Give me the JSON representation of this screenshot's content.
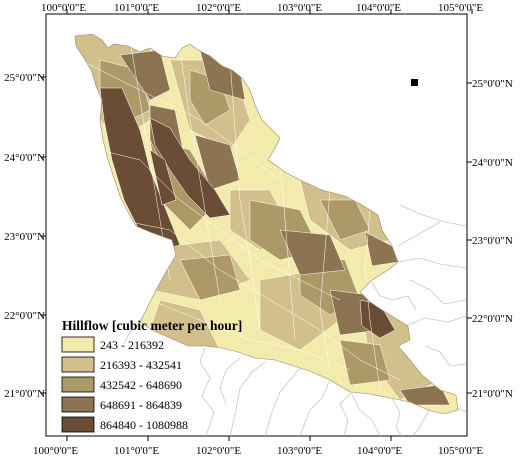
{
  "map": {
    "top_lon_labels": [
      "100°0'0\"E",
      "101°0'0\"E",
      "102°0'0\"E",
      "103°0'0\"E",
      "104°0'0\"E",
      "105°0'0\"E"
    ],
    "bottom_lon_labels": [
      "100°0'0\"E",
      "101°0'0\"E",
      "102°0'0\"E",
      "103°0'0\"E",
      "104°0'0\"E",
      "105°0'0\"E"
    ],
    "left_lat_labels": [
      "25°0'0\"N",
      "24°0'0\"N",
      "23°0'0\"N",
      "22°0'0\"N",
      "21°0'0\"N"
    ],
    "right_lat_labels": [
      "25°0'0\"N",
      "24°0'0\"N",
      "23°0'0\"N",
      "22°0'0\"N",
      "21°0'0\"N"
    ]
  },
  "legend": {
    "title": "Hillflow [cubic meter per hour]",
    "classes": [
      {
        "label": "243 - 216392",
        "color": "#f3ebab"
      },
      {
        "label": "216393 - 432541",
        "color": "#d1c08c"
      },
      {
        "label": "432542 - 648690",
        "color": "#ad9867"
      },
      {
        "label": "648691 - 864839",
        "color": "#8c7351"
      },
      {
        "label": "864840 - 1080988",
        "color": "#6b4d36"
      }
    ]
  },
  "colors": {
    "class1": "#f3ebab",
    "class2": "#d1c08c",
    "class3": "#ad9867",
    "class4": "#8c7351",
    "class5": "#6b4d36",
    "outline": "#c8c8c8",
    "frame": "#000000"
  }
}
